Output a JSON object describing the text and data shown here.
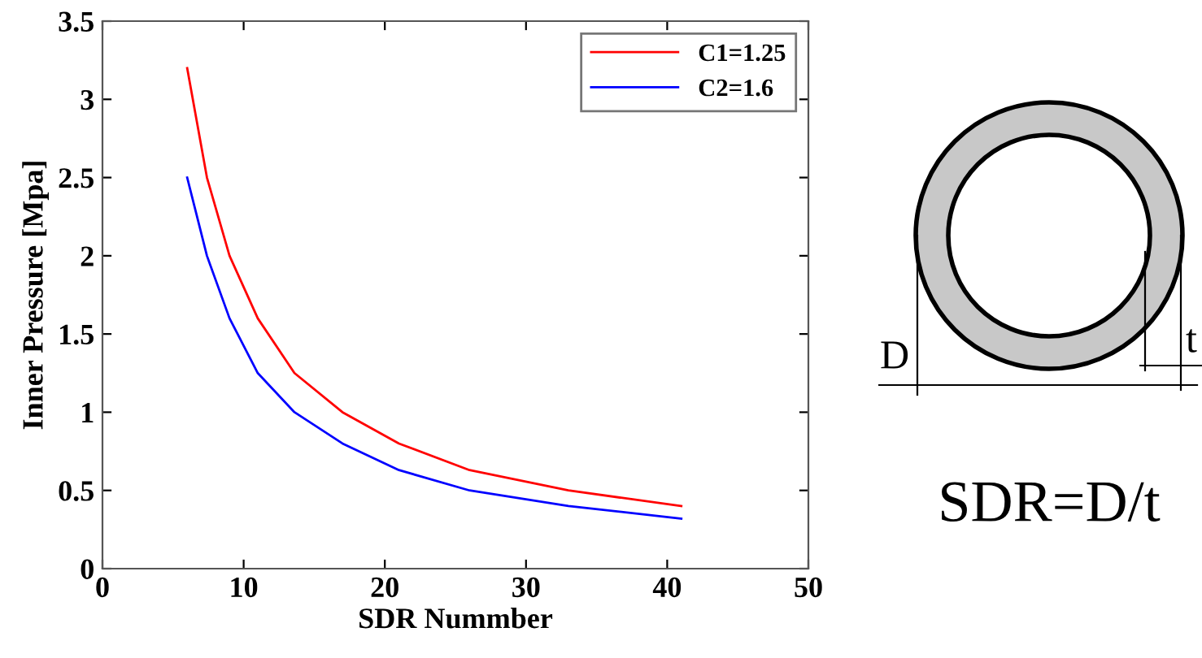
{
  "chart_data": {
    "type": "line",
    "xlabel": "SDR Nummber",
    "ylabel": "Inner Pressure [Mpa]",
    "x": [
      6,
      7.4,
      9,
      11,
      13.6,
      17,
      21,
      26,
      33,
      41
    ],
    "series": [
      {
        "name": "C1=1.25",
        "color": "#ff0000",
        "values": [
          3.2,
          2.5,
          2.0,
          1.6,
          1.25,
          1.0,
          0.8,
          0.63,
          0.5,
          0.4
        ]
      },
      {
        "name": "C2=1.6",
        "color": "#0000ff",
        "values": [
          2.5,
          2.0,
          1.6,
          1.25,
          1.0,
          0.8,
          0.63,
          0.5,
          0.4,
          0.32
        ]
      }
    ],
    "xlim": [
      0,
      50
    ],
    "xticks": [
      0,
      10,
      20,
      30,
      40,
      50
    ],
    "ylim": [
      0,
      3.5
    ],
    "yticks": [
      0,
      0.5,
      1,
      1.5,
      2,
      2.5,
      3,
      3.5
    ],
    "grid": false,
    "legend": "top right",
    "marker": "none",
    "line_style": "solid",
    "annotations": [
      "D",
      "t",
      "SDR=D/t"
    ]
  }
}
